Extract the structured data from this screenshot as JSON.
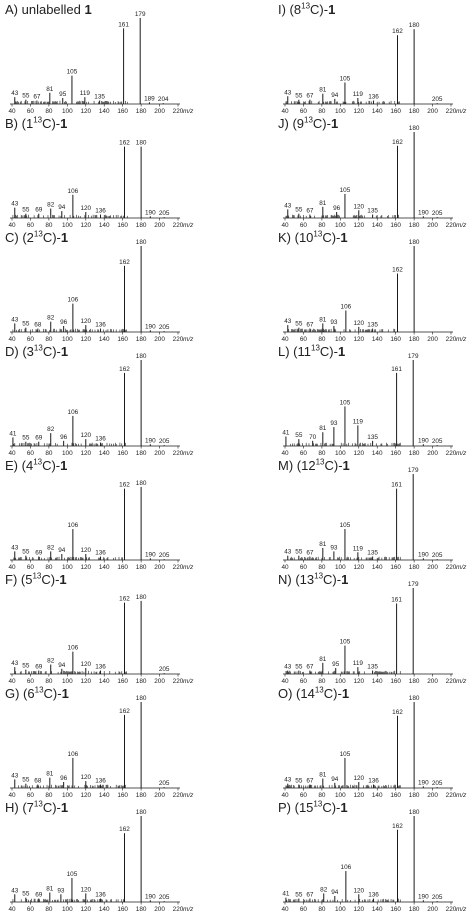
{
  "figure": {
    "x_axis": {
      "min": 40,
      "max": 220,
      "ticks": [
        40,
        60,
        80,
        100,
        120,
        140,
        160,
        180,
        200,
        220
      ],
      "label": "m/z"
    }
  },
  "chart_data": [
    {
      "type": "bar",
      "title_prefix": "A) unlabelled ",
      "title_label": "",
      "title_suffix": "1",
      "peaks": [
        {
          "mz": 43,
          "rel": 8,
          "label": "43"
        },
        {
          "mz": 55,
          "rel": 5,
          "label": "55"
        },
        {
          "mz": 67,
          "rel": 4,
          "label": "67"
        },
        {
          "mz": 81,
          "rel": 13,
          "label": "81"
        },
        {
          "mz": 95,
          "rel": 7,
          "label": "95"
        },
        {
          "mz": 105,
          "rel": 33,
          "label": "105"
        },
        {
          "mz": 119,
          "rel": 8,
          "label": "119"
        },
        {
          "mz": 135,
          "rel": 4,
          "label": "135"
        },
        {
          "mz": 161,
          "rel": 88,
          "label": "161"
        },
        {
          "mz": 179,
          "rel": 100,
          "label": "179"
        },
        {
          "mz": 189,
          "rel": 2,
          "label": "189"
        },
        {
          "mz": 204,
          "rel": 1,
          "label": "204"
        }
      ]
    },
    {
      "type": "bar",
      "title_prefix": "B) (",
      "title_label": "1",
      "title_suffix": "1",
      "peaks": [
        {
          "mz": 43,
          "rel": 12,
          "label": "43"
        },
        {
          "mz": 55,
          "rel": 5,
          "label": "55"
        },
        {
          "mz": 69,
          "rel": 5,
          "label": "69"
        },
        {
          "mz": 82,
          "rel": 11,
          "label": "82"
        },
        {
          "mz": 94,
          "rel": 8,
          "label": "94"
        },
        {
          "mz": 106,
          "rel": 27,
          "label": "106"
        },
        {
          "mz": 120,
          "rel": 7,
          "label": "120"
        },
        {
          "mz": 136,
          "rel": 4,
          "label": "136"
        },
        {
          "mz": 162,
          "rel": 83,
          "label": "162"
        },
        {
          "mz": 180,
          "rel": 83,
          "label": "180"
        },
        {
          "mz": 190,
          "rel": 2,
          "label": "190"
        },
        {
          "mz": 205,
          "rel": 1,
          "label": "205"
        }
      ]
    },
    {
      "type": "bar",
      "title_prefix": "C) (",
      "title_label": "2",
      "title_suffix": "1",
      "peaks": [
        {
          "mz": 43,
          "rel": 10,
          "label": "43"
        },
        {
          "mz": 55,
          "rel": 5,
          "label": "55"
        },
        {
          "mz": 68,
          "rel": 4,
          "label": "68"
        },
        {
          "mz": 82,
          "rel": 12,
          "label": "82"
        },
        {
          "mz": 96,
          "rel": 7,
          "label": "96"
        },
        {
          "mz": 106,
          "rel": 33,
          "label": "106"
        },
        {
          "mz": 120,
          "rel": 8,
          "label": "120"
        },
        {
          "mz": 136,
          "rel": 4,
          "label": "136"
        },
        {
          "mz": 162,
          "rel": 77,
          "label": "162"
        },
        {
          "mz": 180,
          "rel": 100,
          "label": "180"
        },
        {
          "mz": 190,
          "rel": 2,
          "label": "190"
        },
        {
          "mz": 205,
          "rel": 1,
          "label": "205"
        }
      ]
    },
    {
      "type": "bar",
      "title_prefix": "D) (",
      "title_label": "3",
      "title_suffix": "1",
      "peaks": [
        {
          "mz": 41,
          "rel": 10,
          "label": "41"
        },
        {
          "mz": 55,
          "rel": 5,
          "label": "55"
        },
        {
          "mz": 69,
          "rel": 5,
          "label": "69"
        },
        {
          "mz": 82,
          "rel": 15,
          "label": "82"
        },
        {
          "mz": 96,
          "rel": 6,
          "label": "96"
        },
        {
          "mz": 106,
          "rel": 35,
          "label": "106"
        },
        {
          "mz": 120,
          "rel": 8,
          "label": "120"
        },
        {
          "mz": 136,
          "rel": 4,
          "label": "136"
        },
        {
          "mz": 162,
          "rel": 85,
          "label": "162"
        },
        {
          "mz": 180,
          "rel": 100,
          "label": "180"
        },
        {
          "mz": 190,
          "rel": 2,
          "label": "190"
        },
        {
          "mz": 205,
          "rel": 1,
          "label": "205"
        }
      ]
    },
    {
      "type": "bar",
      "title_prefix": "E) (",
      "title_label": "4",
      "title_suffix": "1",
      "peaks": [
        {
          "mz": 43,
          "rel": 10,
          "label": "43"
        },
        {
          "mz": 55,
          "rel": 5,
          "label": "55"
        },
        {
          "mz": 69,
          "rel": 4,
          "label": "69"
        },
        {
          "mz": 82,
          "rel": 10,
          "label": "82"
        },
        {
          "mz": 94,
          "rel": 7,
          "label": "94"
        },
        {
          "mz": 106,
          "rel": 36,
          "label": "106"
        },
        {
          "mz": 120,
          "rel": 7,
          "label": "120"
        },
        {
          "mz": 136,
          "rel": 4,
          "label": "136"
        },
        {
          "mz": 162,
          "rel": 83,
          "label": "162"
        },
        {
          "mz": 180,
          "rel": 85,
          "label": "180"
        },
        {
          "mz": 190,
          "rel": 2,
          "label": "190"
        },
        {
          "mz": 205,
          "rel": 1,
          "label": "205"
        }
      ]
    },
    {
      "type": "bar",
      "title_prefix": "F) (",
      "title_label": "5",
      "title_suffix": "1",
      "peaks": [
        {
          "mz": 43,
          "rel": 8,
          "label": "43"
        },
        {
          "mz": 55,
          "rel": 5,
          "label": "55"
        },
        {
          "mz": 69,
          "rel": 4,
          "label": "69"
        },
        {
          "mz": 82,
          "rel": 11,
          "label": "82"
        },
        {
          "mz": 94,
          "rel": 6,
          "label": "94"
        },
        {
          "mz": 106,
          "rel": 26,
          "label": "106"
        },
        {
          "mz": 120,
          "rel": 7,
          "label": "120"
        },
        {
          "mz": 136,
          "rel": 4,
          "label": "136"
        },
        {
          "mz": 162,
          "rel": 83,
          "label": "162"
        },
        {
          "mz": 180,
          "rel": 85,
          "label": "180"
        },
        {
          "mz": 205,
          "rel": 1,
          "label": "205"
        }
      ]
    },
    {
      "type": "bar",
      "title_prefix": "G) (",
      "title_label": "6",
      "title_suffix": "1",
      "peaks": [
        {
          "mz": 43,
          "rel": 10,
          "label": "43"
        },
        {
          "mz": 55,
          "rel": 5,
          "label": "55"
        },
        {
          "mz": 68,
          "rel": 4,
          "label": "68"
        },
        {
          "mz": 81,
          "rel": 12,
          "label": "81"
        },
        {
          "mz": 96,
          "rel": 7,
          "label": "96"
        },
        {
          "mz": 106,
          "rel": 35,
          "label": "106"
        },
        {
          "mz": 120,
          "rel": 8,
          "label": "120"
        },
        {
          "mz": 136,
          "rel": 4,
          "label": "136"
        },
        {
          "mz": 162,
          "rel": 85,
          "label": "162"
        },
        {
          "mz": 180,
          "rel": 100,
          "label": "180"
        },
        {
          "mz": 205,
          "rel": 1,
          "label": "205"
        }
      ]
    },
    {
      "type": "bar",
      "title_prefix": "H) (",
      "title_label": "7",
      "title_suffix": "1",
      "peaks": [
        {
          "mz": 43,
          "rel": 9,
          "label": "43"
        },
        {
          "mz": 55,
          "rel": 5,
          "label": "55"
        },
        {
          "mz": 69,
          "rel": 4,
          "label": "69"
        },
        {
          "mz": 81,
          "rel": 11,
          "label": "81"
        },
        {
          "mz": 93,
          "rel": 9,
          "label": "93"
        },
        {
          "mz": 105,
          "rel": 28,
          "label": "105"
        },
        {
          "mz": 120,
          "rel": 10,
          "label": "120"
        },
        {
          "mz": 136,
          "rel": 4,
          "label": "136"
        },
        {
          "mz": 162,
          "rel": 80,
          "label": "162"
        },
        {
          "mz": 180,
          "rel": 100,
          "label": "180"
        },
        {
          "mz": 190,
          "rel": 2,
          "label": "190"
        },
        {
          "mz": 205,
          "rel": 1,
          "label": "205"
        }
      ]
    },
    {
      "type": "bar",
      "title_prefix": "I) (",
      "title_label": "8",
      "title_suffix": "1",
      "peaks": [
        {
          "mz": 43,
          "rel": 9,
          "label": "43"
        },
        {
          "mz": 55,
          "rel": 5,
          "label": "55"
        },
        {
          "mz": 67,
          "rel": 5,
          "label": "67"
        },
        {
          "mz": 81,
          "rel": 12,
          "label": "81"
        },
        {
          "mz": 94,
          "rel": 6,
          "label": "94"
        },
        {
          "mz": 105,
          "rel": 25,
          "label": "105"
        },
        {
          "mz": 119,
          "rel": 7,
          "label": "119"
        },
        {
          "mz": 136,
          "rel": 4,
          "label": "136"
        },
        {
          "mz": 162,
          "rel": 80,
          "label": "162"
        },
        {
          "mz": 180,
          "rel": 87,
          "label": "180"
        },
        {
          "mz": 205,
          "rel": 1,
          "label": "205"
        }
      ]
    },
    {
      "type": "bar",
      "title_prefix": "J) (",
      "title_label": "9",
      "title_suffix": "1",
      "peaks": [
        {
          "mz": 43,
          "rel": 10,
          "label": "43"
        },
        {
          "mz": 55,
          "rel": 5,
          "label": "55"
        },
        {
          "mz": 67,
          "rel": 4,
          "label": "67"
        },
        {
          "mz": 81,
          "rel": 13,
          "label": "81"
        },
        {
          "mz": 96,
          "rel": 7,
          "label": "96"
        },
        {
          "mz": 105,
          "rel": 28,
          "label": "105"
        },
        {
          "mz": 120,
          "rel": 9,
          "label": "120"
        },
        {
          "mz": 135,
          "rel": 4,
          "label": "135"
        },
        {
          "mz": 162,
          "rel": 84,
          "label": "162"
        },
        {
          "mz": 180,
          "rel": 100,
          "label": "180"
        },
        {
          "mz": 190,
          "rel": 2,
          "label": "190"
        },
        {
          "mz": 205,
          "rel": 1,
          "label": "205"
        }
      ]
    },
    {
      "type": "bar",
      "title_prefix": "K) (",
      "title_label": "10",
      "title_suffix": "1",
      "peaks": [
        {
          "mz": 43,
          "rel": 8,
          "label": "43"
        },
        {
          "mz": 55,
          "rel": 5,
          "label": "55"
        },
        {
          "mz": 67,
          "rel": 4,
          "label": "67"
        },
        {
          "mz": 81,
          "rel": 10,
          "label": "81"
        },
        {
          "mz": 93,
          "rel": 7,
          "label": "93"
        },
        {
          "mz": 106,
          "rel": 25,
          "label": "106"
        },
        {
          "mz": 120,
          "rel": 6,
          "label": "120"
        },
        {
          "mz": 135,
          "rel": 4,
          "label": "135"
        },
        {
          "mz": 162,
          "rel": 68,
          "label": "162"
        },
        {
          "mz": 180,
          "rel": 100,
          "label": "180"
        }
      ]
    },
    {
      "type": "bar",
      "title_prefix": "L) (",
      "title_label": "11",
      "title_suffix": "1",
      "peaks": [
        {
          "mz": 41,
          "rel": 11,
          "label": "41"
        },
        {
          "mz": 55,
          "rel": 8,
          "label": "55"
        },
        {
          "mz": 70,
          "rel": 6,
          "label": "70"
        },
        {
          "mz": 81,
          "rel": 16,
          "label": "81"
        },
        {
          "mz": 93,
          "rel": 22,
          "label": "93"
        },
        {
          "mz": 105,
          "rel": 46,
          "label": "105"
        },
        {
          "mz": 119,
          "rel": 24,
          "label": "119"
        },
        {
          "mz": 135,
          "rel": 6,
          "label": "135"
        },
        {
          "mz": 161,
          "rel": 85,
          "label": "161"
        },
        {
          "mz": 179,
          "rel": 100,
          "label": "179"
        },
        {
          "mz": 190,
          "rel": 2,
          "label": "190"
        },
        {
          "mz": 205,
          "rel": 1,
          "label": "205"
        }
      ]
    },
    {
      "type": "bar",
      "title_prefix": "M) (",
      "title_label": "12",
      "title_suffix": "1",
      "peaks": [
        {
          "mz": 43,
          "rel": 5,
          "label": "43"
        },
        {
          "mz": 55,
          "rel": 5,
          "label": "55"
        },
        {
          "mz": 67,
          "rel": 4,
          "label": "67"
        },
        {
          "mz": 81,
          "rel": 14,
          "label": "81"
        },
        {
          "mz": 93,
          "rel": 10,
          "label": "93"
        },
        {
          "mz": 105,
          "rel": 36,
          "label": "105"
        },
        {
          "mz": 119,
          "rel": 9,
          "label": "119"
        },
        {
          "mz": 135,
          "rel": 4,
          "label": "135"
        },
        {
          "mz": 161,
          "rel": 83,
          "label": "161"
        },
        {
          "mz": 179,
          "rel": 100,
          "label": "179"
        },
        {
          "mz": 190,
          "rel": 2,
          "label": "190"
        },
        {
          "mz": 205,
          "rel": 1,
          "label": "205"
        }
      ]
    },
    {
      "type": "bar",
      "title_prefix": "N) (",
      "title_label": "13",
      "title_suffix": "1",
      "peaks": [
        {
          "mz": 43,
          "rel": 4,
          "label": "43"
        },
        {
          "mz": 55,
          "rel": 4,
          "label": "55"
        },
        {
          "mz": 67,
          "rel": 4,
          "label": "67"
        },
        {
          "mz": 81,
          "rel": 13,
          "label": "81"
        },
        {
          "mz": 95,
          "rel": 7,
          "label": "95"
        },
        {
          "mz": 105,
          "rel": 33,
          "label": "105"
        },
        {
          "mz": 119,
          "rel": 8,
          "label": "119"
        },
        {
          "mz": 135,
          "rel": 4,
          "label": "135"
        },
        {
          "mz": 161,
          "rel": 82,
          "label": "161"
        },
        {
          "mz": 179,
          "rel": 100,
          "label": "179"
        }
      ]
    },
    {
      "type": "bar",
      "title_prefix": "O) (",
      "title_label": "14",
      "title_suffix": "1",
      "peaks": [
        {
          "mz": 43,
          "rel": 5,
          "label": "43"
        },
        {
          "mz": 55,
          "rel": 4,
          "label": "55"
        },
        {
          "mz": 67,
          "rel": 4,
          "label": "67"
        },
        {
          "mz": 81,
          "rel": 11,
          "label": "81"
        },
        {
          "mz": 94,
          "rel": 6,
          "label": "94"
        },
        {
          "mz": 105,
          "rel": 35,
          "label": "105"
        },
        {
          "mz": 120,
          "rel": 7,
          "label": "120"
        },
        {
          "mz": 136,
          "rel": 4,
          "label": "136"
        },
        {
          "mz": 162,
          "rel": 84,
          "label": "162"
        },
        {
          "mz": 180,
          "rel": 100,
          "label": "180"
        },
        {
          "mz": 190,
          "rel": 2,
          "label": "190"
        },
        {
          "mz": 205,
          "rel": 1,
          "label": "205"
        }
      ]
    },
    {
      "type": "bar",
      "title_prefix": "P) (",
      "title_label": "15",
      "title_suffix": "1",
      "peaks": [
        {
          "mz": 41,
          "rel": 5,
          "label": "41"
        },
        {
          "mz": 55,
          "rel": 4,
          "label": "55"
        },
        {
          "mz": 67,
          "rel": 4,
          "label": "67"
        },
        {
          "mz": 82,
          "rel": 10,
          "label": "82"
        },
        {
          "mz": 94,
          "rel": 7,
          "label": "94"
        },
        {
          "mz": 106,
          "rel": 36,
          "label": "106"
        },
        {
          "mz": 120,
          "rel": 9,
          "label": "120"
        },
        {
          "mz": 136,
          "rel": 4,
          "label": "136"
        },
        {
          "mz": 162,
          "rel": 84,
          "label": "162"
        },
        {
          "mz": 180,
          "rel": 100,
          "label": "180"
        },
        {
          "mz": 190,
          "rel": 2,
          "label": "190"
        },
        {
          "mz": 205,
          "rel": 1,
          "label": "205"
        }
      ]
    }
  ]
}
